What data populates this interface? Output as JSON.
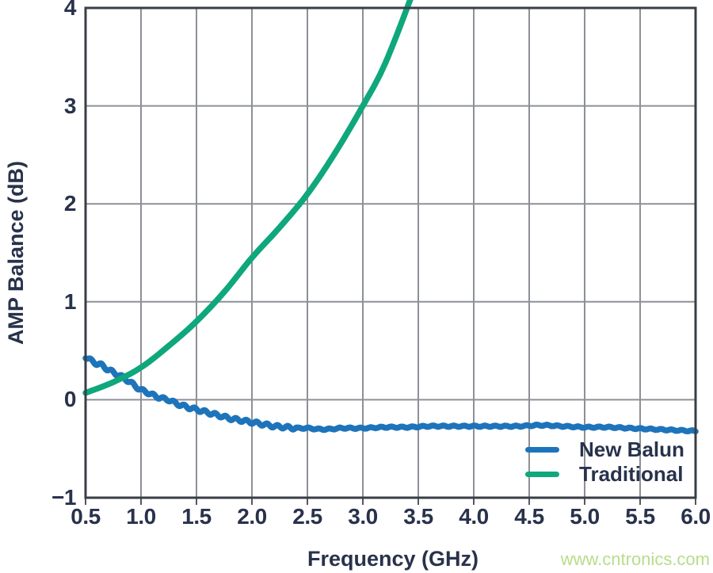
{
  "colors": {
    "background": "#ffffff",
    "plot_border": "#3a3e46",
    "gridline": "#8d9097",
    "tick_mark": "#55585f",
    "axis_text": "#28324b",
    "new_balun": "#1e74ba",
    "traditional": "#0fa77c"
  },
  "watermark": {
    "text": "www.cntronics.com",
    "color": "#b6de8b"
  },
  "chart_data": {
    "type": "line",
    "title": "",
    "xlabel": "Frequency (GHz)",
    "ylabel": "AMP Balance (dB)",
    "xlim": [
      0.5,
      6.0
    ],
    "ylim": [
      -1,
      4
    ],
    "grid": true,
    "x_ticks": [
      0.5,
      1.0,
      1.5,
      2.0,
      2.5,
      3.0,
      3.5,
      4.0,
      4.5,
      5.0,
      5.5,
      6.0
    ],
    "x_tick_labels": [
      "0.5",
      "1.0",
      "1.5",
      "2.0",
      "2.5",
      "3.0",
      "3.5",
      "4.0",
      "4.5",
      "5.0",
      "5.5",
      "6.0"
    ],
    "y_ticks": [
      4,
      3,
      2,
      1,
      0,
      -1
    ],
    "y_tick_labels": [
      "4",
      "3",
      "2",
      "1",
      "0",
      "−1"
    ],
    "legend": {
      "position": "inside-bottom-right",
      "items": [
        {
          "label": "New Balun",
          "color": "#1e74ba"
        },
        {
          "label": "Traditional",
          "color": "#0fa77c"
        }
      ]
    },
    "series": [
      {
        "name": "New Balun",
        "color": "#1e74ba",
        "wiggle": true,
        "x": [
          0.5,
          0.55,
          0.6,
          0.65,
          0.7,
          0.75,
          0.8,
          0.85,
          0.9,
          0.95,
          1.0,
          1.05,
          1.1,
          1.15,
          1.2,
          1.25,
          1.3,
          1.4,
          1.5,
          1.6,
          1.7,
          1.8,
          1.9,
          2.0,
          2.1,
          2.2,
          2.3,
          2.4,
          2.5,
          2.6,
          2.7,
          2.8,
          2.9,
          3.0,
          3.2,
          3.4,
          3.6,
          3.8,
          4.0,
          4.2,
          4.4,
          4.6,
          4.8,
          5.0,
          5.2,
          5.4,
          5.6,
          5.8,
          6.0
        ],
        "y": [
          0.44,
          0.4,
          0.37,
          0.35,
          0.31,
          0.28,
          0.25,
          0.22,
          0.18,
          0.14,
          0.1,
          0.08,
          0.05,
          0.03,
          0.01,
          0.0,
          -0.03,
          -0.07,
          -0.1,
          -0.13,
          -0.16,
          -0.19,
          -0.21,
          -0.23,
          -0.25,
          -0.27,
          -0.28,
          -0.29,
          -0.29,
          -0.3,
          -0.3,
          -0.29,
          -0.29,
          -0.29,
          -0.28,
          -0.28,
          -0.27,
          -0.27,
          -0.27,
          -0.27,
          -0.27,
          -0.26,
          -0.27,
          -0.28,
          -0.28,
          -0.29,
          -0.3,
          -0.31,
          -0.32
        ]
      },
      {
        "name": "Traditional",
        "color": "#0fa77c",
        "wiggle": false,
        "x": [
          0.5,
          0.75,
          1.0,
          1.25,
          1.5,
          1.75,
          2.0,
          2.25,
          2.5,
          2.75,
          3.0,
          3.2,
          3.45
        ],
        "y": [
          0.07,
          0.18,
          0.33,
          0.55,
          0.8,
          1.1,
          1.45,
          1.76,
          2.1,
          2.52,
          3.0,
          3.43,
          4.15
        ]
      }
    ]
  }
}
